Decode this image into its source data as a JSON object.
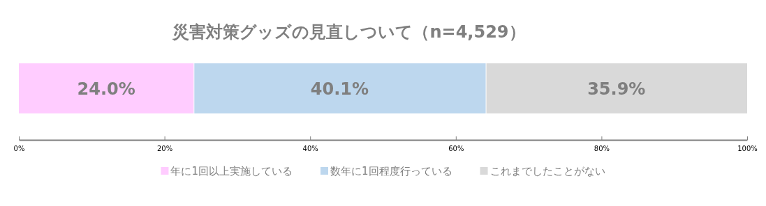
{
  "chart_data": {
    "type": "bar",
    "title": "災害対策グッズの見直しついて（n=4,529）",
    "orientation": "horizontal",
    "stacked": true,
    "categories": [
      null
    ],
    "series": [
      {
        "name": "年に1回以上実施している",
        "color": "#ffccff",
        "values": [
          24.0
        ],
        "value_labels": [
          "24.0%"
        ]
      },
      {
        "name": "数年に1回程度行っている",
        "color": "#bdd7ee",
        "values": [
          40.1
        ],
        "value_labels": [
          "40.1%"
        ]
      },
      {
        "name": "これまでしたことがない",
        "color": "#d9d9d9",
        "values": [
          35.9
        ],
        "value_labels": [
          "35.9%"
        ]
      }
    ],
    "xlim": [
      0,
      100
    ],
    "xticks": [
      {
        "value": 0,
        "label": "0%"
      },
      {
        "value": 20,
        "label": "20%"
      },
      {
        "value": 40,
        "label": "40%"
      },
      {
        "value": 60,
        "label": "60%"
      },
      {
        "value": 80,
        "label": "80%"
      },
      {
        "value": 100,
        "label": "100%"
      }
    ],
    "legend": "bottom"
  }
}
